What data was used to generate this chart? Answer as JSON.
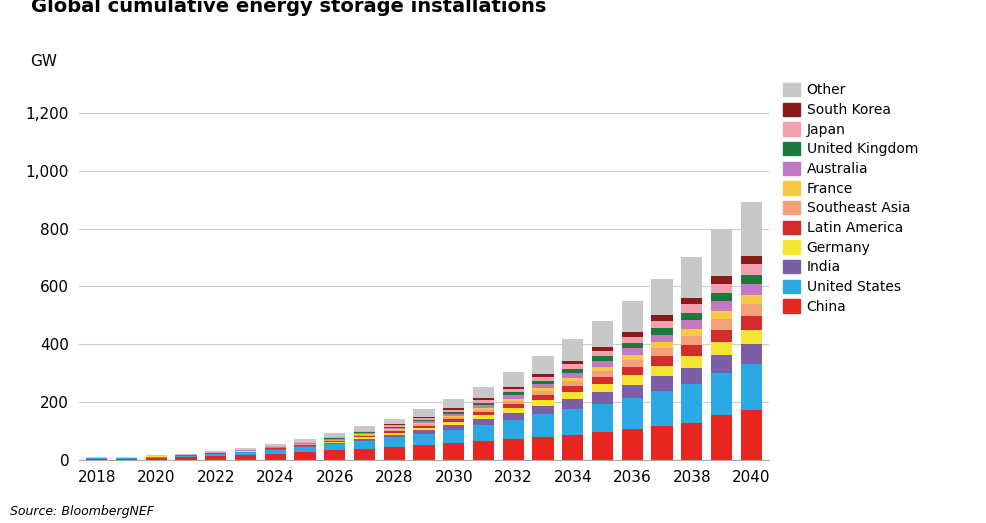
{
  "title": "Global cumulative energy storage installations",
  "ylabel": "GW",
  "source": "Source: BloombergNEF",
  "years": [
    2018,
    2019,
    2020,
    2021,
    2022,
    2023,
    2024,
    2025,
    2026,
    2027,
    2028,
    2029,
    2030,
    2031,
    2032,
    2033,
    2034,
    2035,
    2036,
    2037,
    2038,
    2039,
    2040
  ],
  "series": {
    "China": [
      5,
      6,
      8,
      11,
      14,
      18,
      23,
      28,
      34,
      40,
      46,
      52,
      58,
      65,
      72,
      80,
      88,
      97,
      107,
      118,
      130,
      155,
      175
    ],
    "United States": [
      2,
      3,
      4,
      5,
      7,
      9,
      12,
      16,
      21,
      27,
      33,
      40,
      48,
      57,
      67,
      78,
      88,
      98,
      108,
      120,
      132,
      145,
      158
    ],
    "India": [
      0.2,
      0.3,
      0.5,
      0.8,
      1.2,
      1.8,
      2.5,
      3.5,
      5,
      7,
      9,
      12,
      15,
      19,
      24,
      29,
      34,
      40,
      46,
      52,
      58,
      64,
      70
    ],
    "Germany": [
      0.3,
      0.4,
      0.5,
      0.7,
      1.0,
      1.4,
      2.0,
      2.8,
      3.8,
      5,
      6.5,
      8.5,
      11,
      14,
      17,
      20,
      24,
      28,
      32,
      36,
      40,
      44,
      48
    ],
    "Latin America": [
      0.2,
      0.3,
      0.4,
      0.5,
      0.8,
      1.1,
      1.6,
      2.3,
      3.2,
      4.2,
      5.5,
      7,
      9,
      11,
      14,
      17,
      21,
      25,
      29,
      33,
      38,
      43,
      48
    ],
    "Southeast Asia": [
      0.2,
      0.2,
      0.3,
      0.4,
      0.6,
      0.9,
      1.3,
      1.8,
      2.5,
      3.3,
      4.3,
      5.5,
      7,
      9,
      11,
      14,
      17,
      20,
      24,
      28,
      32,
      37,
      42
    ],
    "France": [
      0.1,
      0.2,
      0.3,
      0.4,
      0.5,
      0.7,
      1.0,
      1.4,
      1.9,
      2.5,
      3.2,
      4.0,
      5,
      6.5,
      8,
      10,
      12,
      14,
      17,
      20,
      23,
      26,
      30
    ],
    "Australia": [
      0.2,
      0.3,
      0.4,
      0.6,
      0.9,
      1.2,
      1.7,
      2.3,
      3.0,
      4.0,
      5.0,
      6.5,
      8,
      10,
      12,
      15,
      18,
      21,
      24,
      27,
      31,
      35,
      39
    ],
    "United Kingdom": [
      0.2,
      0.2,
      0.3,
      0.4,
      0.6,
      0.8,
      1.2,
      1.6,
      2.2,
      2.9,
      3.7,
      4.8,
      6,
      7.5,
      9,
      11,
      13,
      16,
      18,
      21,
      24,
      27,
      30
    ],
    "Japan": [
      0.2,
      0.3,
      0.4,
      0.5,
      0.7,
      1.0,
      1.4,
      1.9,
      2.6,
      3.4,
      4.3,
      5.5,
      7,
      9,
      11,
      13,
      16,
      19,
      22,
      26,
      30,
      34,
      38
    ],
    "South Korea": [
      0.1,
      0.2,
      0.2,
      0.3,
      0.5,
      0.7,
      1.0,
      1.4,
      1.9,
      2.5,
      3.2,
      4.1,
      5,
      6.5,
      8,
      10,
      12,
      14,
      17,
      19,
      22,
      25,
      28
    ],
    "Other": [
      0.8,
      1.2,
      1.8,
      2.5,
      3.5,
      5,
      7,
      9,
      12,
      16,
      20,
      26,
      32,
      40,
      50,
      62,
      75,
      90,
      106,
      124,
      143,
      164,
      187
    ]
  },
  "colors": {
    "China": "#e8251e",
    "United States": "#29aae2",
    "India": "#7b5ea7",
    "Germany": "#f5e432",
    "Latin America": "#d42b2b",
    "Southeast Asia": "#f4a07a",
    "France": "#f7c842",
    "Australia": "#c278c2",
    "United Kingdom": "#1a7a3c",
    "Japan": "#f4a0b0",
    "South Korea": "#8b1a1a",
    "Other": "#c8c8c8"
  },
  "ylim": [
    0,
    1300
  ],
  "yticks": [
    0,
    200,
    400,
    600,
    800,
    1000,
    1200
  ],
  "background_color": "#ffffff"
}
